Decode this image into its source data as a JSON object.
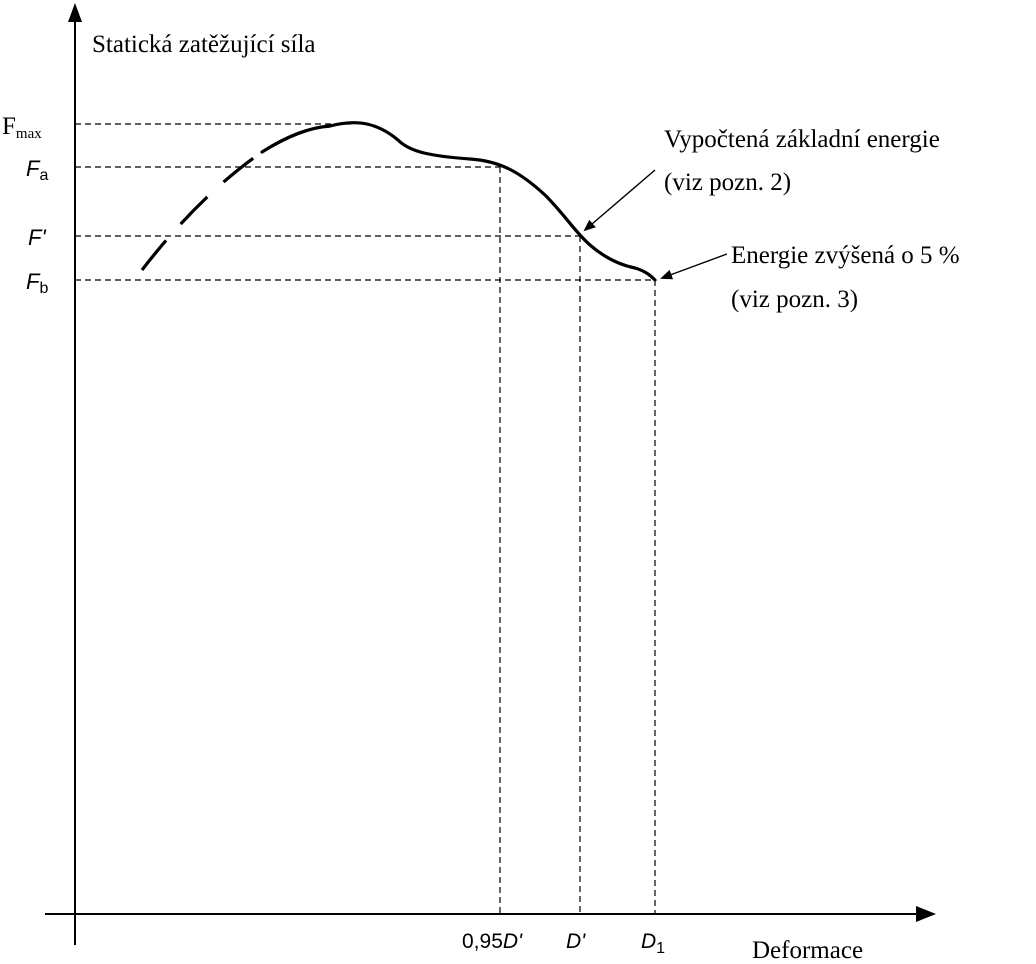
{
  "chart_data": {
    "type": "line",
    "ylabel": "Statická zatěžující síla",
    "xlabel": "Deformace",
    "y_ticks": [
      {
        "id": "fmax",
        "base": "F",
        "sub": "max",
        "italic": false
      },
      {
        "id": "fa",
        "base": "F",
        "sub": "a",
        "italic": true
      },
      {
        "id": "fprime",
        "base": "F'",
        "sub": "",
        "italic": true
      },
      {
        "id": "fb",
        "base": "F",
        "sub": "b",
        "italic": true
      }
    ],
    "x_ticks": [
      {
        "id": "x095",
        "prefix": "0,95",
        "base": "D'",
        "sub": ""
      },
      {
        "id": "dprime",
        "prefix": "",
        "base": "D'",
        "sub": ""
      },
      {
        "id": "d1",
        "prefix": "",
        "base": "D",
        "sub": "1"
      }
    ],
    "annotations": [
      {
        "id": "basic-energy",
        "lines": [
          "Vypočtená základní energie",
          "(viz pozn. 2)"
        ]
      },
      {
        "id": "energy-plus5",
        "lines": [
          "Energie zvýšená o 5 %",
          "(viz pozn. 3)"
        ]
      }
    ],
    "grid": false,
    "legend": "none"
  }
}
